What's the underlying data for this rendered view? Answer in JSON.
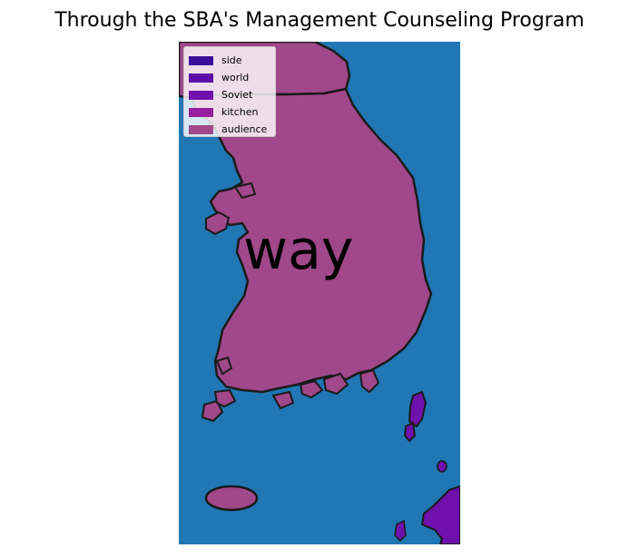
{
  "title": "Through the SBA's Management Counseling Program",
  "map": {
    "water_color": "#2077b4",
    "outline_color": "#1a1a1a",
    "region_label": "way"
  },
  "legend": {
    "items": [
      {
        "label": "side",
        "color": "#3b0f9b"
      },
      {
        "label": "world",
        "color": "#5b0fa8"
      },
      {
        "label": "Soviet",
        "color": "#7010ad"
      },
      {
        "label": "kitchen",
        "color": "#951f9e"
      },
      {
        "label": "audience",
        "color": "#a0488a"
      }
    ]
  }
}
